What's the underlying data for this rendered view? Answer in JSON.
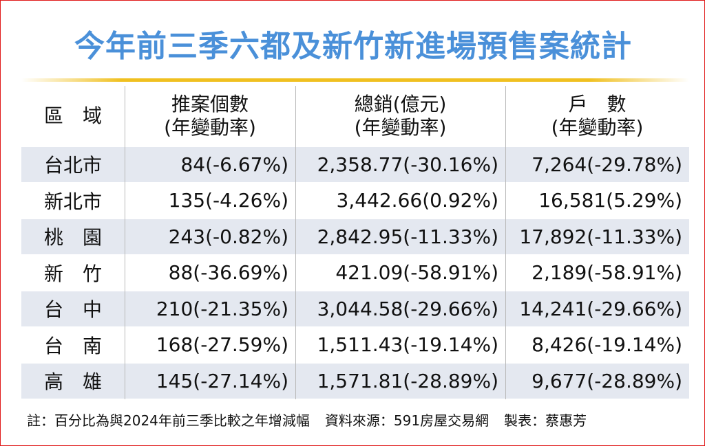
{
  "header": {
    "title": "今年前三季六都及新竹新進場預售案統計"
  },
  "table": {
    "columns": [
      [
        "區　域"
      ],
      [
        "推案個數",
        "(年變動率)"
      ],
      [
        "總銷(億元)",
        "(年變動率)"
      ],
      [
        "戶　數",
        "(年變動率)"
      ]
    ],
    "rows": [
      [
        "台北市",
        "84(-6.67%)",
        "2,358.77(-30.16%)",
        "7,264(-29.78%)"
      ],
      [
        "新北市",
        "135(-4.26%)",
        "3,442.66(0.92%)",
        "16,581(5.29%)"
      ],
      [
        "桃　園",
        "243(-0.82%)",
        "2,842.95(-11.33%)",
        "17,892(-11.33%)"
      ],
      [
        "新　竹",
        "88(-36.69%)",
        "421.09(-58.91%)",
        "2,189(-58.91%)"
      ],
      [
        "台　中",
        "210(-21.35%)",
        "3,044.58(-29.66%)",
        "14,241(-29.66%)"
      ],
      [
        "台　南",
        "168(-27.59%)",
        "1,511.43(-19.14%)",
        "8,426(-19.14%)"
      ],
      [
        "高　雄",
        "145(-27.14%)",
        "1,571.81(-28.89%)",
        "9,677(-28.89%)"
      ]
    ]
  },
  "footer": {
    "note": "註：百分比為與2024年前三季比較之年增減幅",
    "source": "資料來源：591房屋交易網",
    "author": "製表：蔡惠芳"
  }
}
